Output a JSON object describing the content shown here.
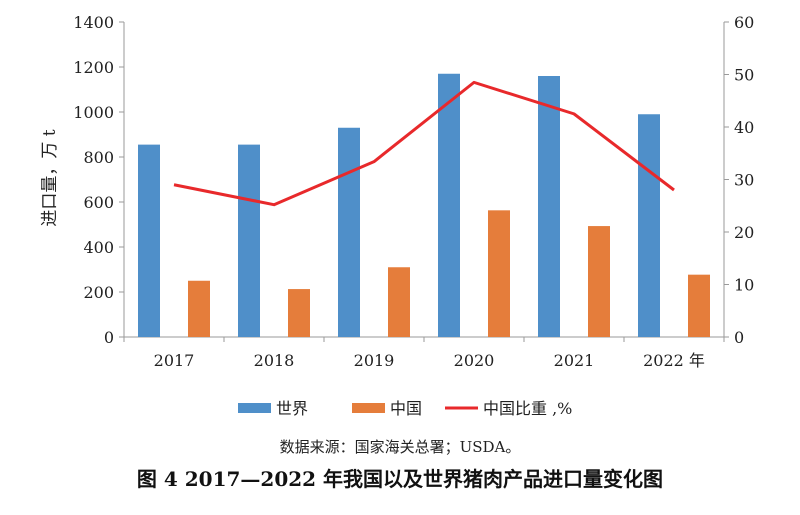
{
  "chart_data": {
    "type": "bar",
    "categories": [
      "2017",
      "2018",
      "2019",
      "2020",
      "2021",
      "2022 年"
    ],
    "series": [
      {
        "name": "世界",
        "type": "bar",
        "axis": "left",
        "color": "#4F8FC9",
        "values": [
          855,
          855,
          930,
          1170,
          1160,
          990
        ]
      },
      {
        "name": "中国",
        "type": "bar",
        "axis": "left",
        "color": "#E57D3B",
        "values": [
          250,
          213,
          310,
          563,
          493,
          277
        ]
      },
      {
        "name": "中国比重 ,%",
        "type": "line",
        "axis": "right",
        "color": "#E8292B",
        "values": [
          29,
          25.2,
          33.4,
          48.5,
          42.5,
          28
        ]
      }
    ],
    "ylabel": "进口量，万 t",
    "ylim": [
      0,
      1400
    ],
    "yticks": [
      "0",
      "200",
      "400",
      "600",
      "800",
      "1000",
      "1200",
      "1400"
    ],
    "y2lim": [
      0,
      60
    ],
    "y2ticks": [
      "0",
      "10",
      "20",
      "30",
      "40",
      "50",
      "60"
    ],
    "grid": false,
    "legend_position": "bottom"
  },
  "source_note": "数据来源：国家海关总署；USDA。",
  "caption": "图 4  2017—2022 年我国以及世界猪肉产品进口量变化图"
}
